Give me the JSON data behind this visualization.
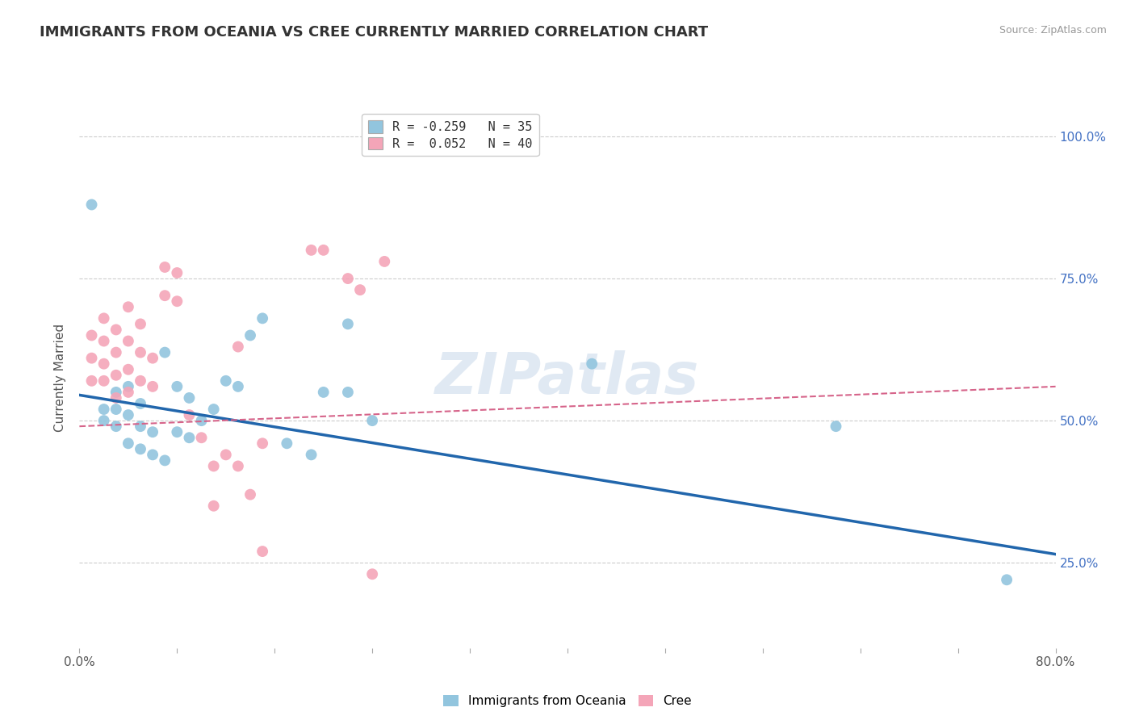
{
  "title": "IMMIGRANTS FROM OCEANIA VS CREE CURRENTLY MARRIED CORRELATION CHART",
  "source": "Source: ZipAtlas.com",
  "ylabel": "Currently Married",
  "xlim": [
    0.0,
    0.8
  ],
  "ylim": [
    0.1,
    1.05
  ],
  "blue_color": "#92c5de",
  "pink_color": "#f4a5b8",
  "blue_line_color": "#2166ac",
  "pink_line_color": "#d6648a",
  "watermark": "ZIPatlas",
  "blue_scatter_x": [
    0.01,
    0.02,
    0.02,
    0.03,
    0.03,
    0.03,
    0.04,
    0.04,
    0.04,
    0.05,
    0.05,
    0.05,
    0.06,
    0.06,
    0.07,
    0.07,
    0.08,
    0.08,
    0.09,
    0.09,
    0.1,
    0.11,
    0.12,
    0.13,
    0.14,
    0.15,
    0.17,
    0.19,
    0.2,
    0.22,
    0.22,
    0.24,
    0.42,
    0.62,
    0.76
  ],
  "blue_scatter_y": [
    0.88,
    0.5,
    0.52,
    0.49,
    0.52,
    0.55,
    0.46,
    0.51,
    0.56,
    0.45,
    0.49,
    0.53,
    0.44,
    0.48,
    0.43,
    0.62,
    0.48,
    0.56,
    0.47,
    0.54,
    0.5,
    0.52,
    0.57,
    0.56,
    0.65,
    0.68,
    0.46,
    0.44,
    0.55,
    0.55,
    0.67,
    0.5,
    0.6,
    0.49,
    0.22
  ],
  "pink_scatter_x": [
    0.01,
    0.01,
    0.01,
    0.02,
    0.02,
    0.02,
    0.02,
    0.03,
    0.03,
    0.03,
    0.03,
    0.04,
    0.04,
    0.04,
    0.04,
    0.05,
    0.05,
    0.05,
    0.06,
    0.06,
    0.07,
    0.07,
    0.08,
    0.08,
    0.09,
    0.1,
    0.11,
    0.12,
    0.13,
    0.13,
    0.14,
    0.15,
    0.19,
    0.2,
    0.22,
    0.23,
    0.24,
    0.25,
    0.15,
    0.11
  ],
  "pink_scatter_y": [
    0.57,
    0.61,
    0.65,
    0.57,
    0.6,
    0.64,
    0.68,
    0.54,
    0.58,
    0.62,
    0.66,
    0.55,
    0.59,
    0.64,
    0.7,
    0.57,
    0.62,
    0.67,
    0.56,
    0.61,
    0.72,
    0.77,
    0.71,
    0.76,
    0.51,
    0.47,
    0.42,
    0.44,
    0.42,
    0.63,
    0.37,
    0.46,
    0.8,
    0.8,
    0.75,
    0.73,
    0.23,
    0.78,
    0.27,
    0.35
  ],
  "blue_line_x": [
    0.0,
    0.8
  ],
  "blue_line_y": [
    0.545,
    0.265
  ],
  "pink_line_x": [
    0.0,
    0.8
  ],
  "pink_line_y": [
    0.49,
    0.56
  ]
}
